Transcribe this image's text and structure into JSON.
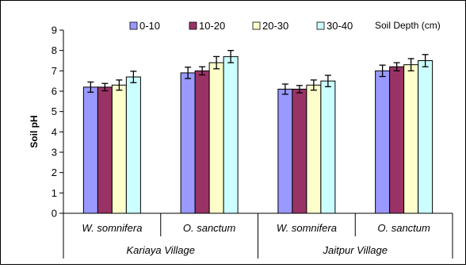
{
  "chart_data": {
    "type": "bar",
    "ylabel": "Soil pH",
    "ylim": [
      0,
      9
    ],
    "yticks": [
      0,
      1,
      2,
      3,
      4,
      5,
      6,
      7,
      8,
      9
    ],
    "legend_title": "Soil Depth (cm)",
    "legend_placement": "top",
    "grid": false,
    "groups": [
      {
        "name": "Kariaya Village",
        "categories": [
          "W. somnifera",
          "O. sanctum"
        ]
      },
      {
        "name": "Jaitpur Village",
        "categories": [
          "W. somnifera",
          "O. sanctum"
        ]
      }
    ],
    "categories": [
      "W. somnifera",
      "O. sanctum",
      "W. somnifera",
      "O. sanctum"
    ],
    "series": [
      {
        "name": "0-10",
        "color": "#9999ff",
        "values": [
          6.2,
          6.9,
          6.1,
          7.0
        ],
        "errors": [
          0.25,
          0.28,
          0.25,
          0.28
        ]
      },
      {
        "name": "10-20",
        "color": "#993366",
        "values": [
          6.2,
          7.0,
          6.1,
          7.2
        ],
        "errors": [
          0.18,
          0.2,
          0.18,
          0.2
        ]
      },
      {
        "name": "20-30",
        "color": "#ffffcc",
        "values": [
          6.3,
          7.4,
          6.3,
          7.3
        ],
        "errors": [
          0.25,
          0.3,
          0.25,
          0.3
        ]
      },
      {
        "name": "30-40",
        "color": "#ccffff",
        "values": [
          6.7,
          7.7,
          6.5,
          7.5
        ],
        "errors": [
          0.28,
          0.3,
          0.28,
          0.3
        ]
      }
    ]
  }
}
